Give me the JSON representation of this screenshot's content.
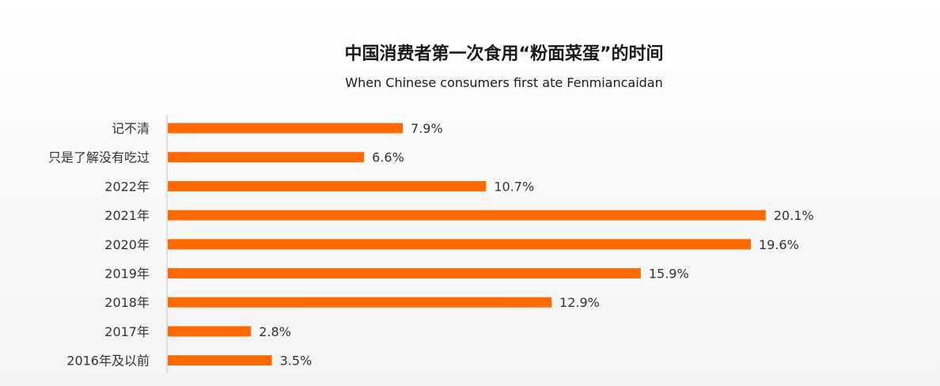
{
  "chart_data": {
    "type": "bar",
    "orientation": "horizontal",
    "title": "中国消费者第一次食用“粉面菜蛋”的时间",
    "subtitle": "When Chinese consumers first ate Fenmiancaidan",
    "categories": [
      "记不清",
      "只是了解没有吃过",
      "2022年",
      "2021年",
      "2020年",
      "2019年",
      "2018年",
      "2017年",
      "2016年及以前"
    ],
    "values": [
      7.9,
      6.6,
      10.7,
      20.1,
      19.6,
      15.9,
      12.9,
      2.8,
      3.5
    ],
    "value_labels": [
      "7.9%",
      "6.6%",
      "10.7%",
      "20.1%",
      "19.6%",
      "15.9%",
      "12.9%",
      "2.8%",
      "3.5%"
    ],
    "unit": "%",
    "grid": false,
    "legend": "none",
    "bar_color": "#ff6a00"
  }
}
